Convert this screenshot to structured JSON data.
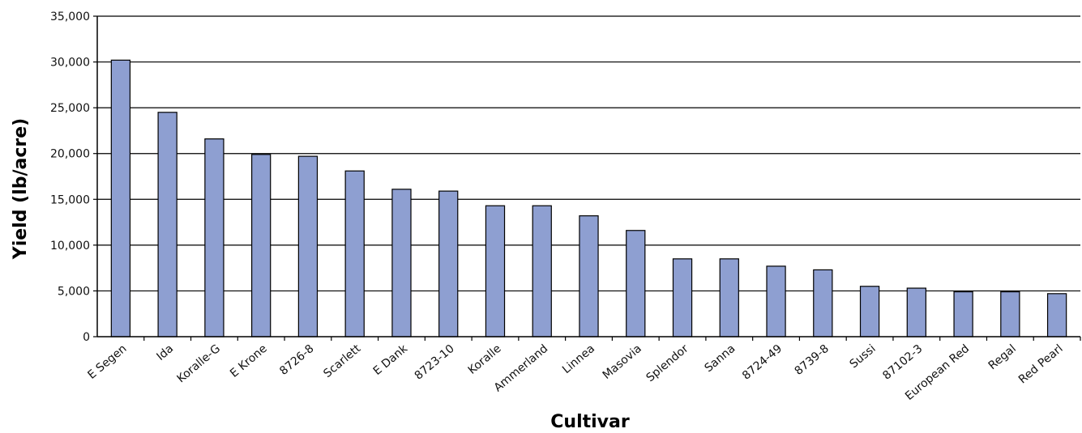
{
  "chart_data": {
    "type": "bar",
    "title": "",
    "xlabel": "Cultivar",
    "ylabel": "Yield (lb/acre)",
    "ylim": [
      0,
      35000
    ],
    "yticks": [
      0,
      5000,
      10000,
      15000,
      20000,
      25000,
      30000,
      35000
    ],
    "ytick_labels": [
      "0",
      "5,000",
      "10,000",
      "15,000",
      "20,000",
      "25,000",
      "30,000",
      "35,000"
    ],
    "grid": true,
    "legend": "none",
    "bar_color": "#8e9fd1",
    "categories": [
      "E Segen",
      "Ida",
      "Koralle-G",
      "E Krone",
      "8726-8",
      "Scarlett",
      "E Dank",
      "8723-10",
      "Koralle",
      "Ammerland",
      "Linnea",
      "Masovia",
      "Splendor",
      "Sanna",
      "8724-49",
      "8739-8",
      "Sussi",
      "87102-3",
      "European Red",
      "Regal",
      "Red Pearl"
    ],
    "values": [
      30200,
      24500,
      21600,
      19900,
      19700,
      18100,
      16100,
      15900,
      14300,
      14300,
      13200,
      11600,
      8500,
      8500,
      7700,
      7300,
      5500,
      5300,
      4900,
      4900,
      4700
    ]
  }
}
